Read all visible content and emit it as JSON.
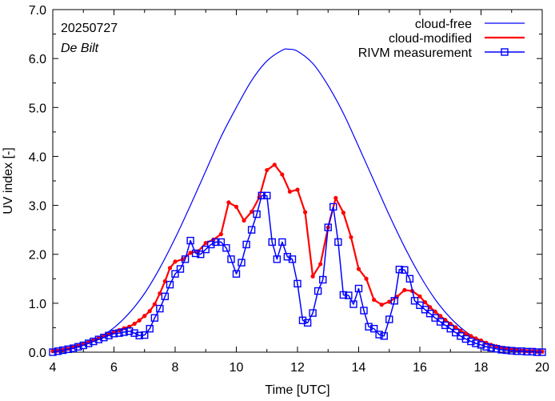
{
  "chart_data": {
    "type": "line",
    "title": "",
    "xlabel": "Time  [UTC]",
    "ylabel": "UV index  [-]",
    "xlim": [
      4,
      20
    ],
    "ylim": [
      0,
      7
    ],
    "x_ticks": [
      4,
      6,
      8,
      10,
      12,
      14,
      16,
      18,
      20
    ],
    "x_tick_labels": [
      "4",
      "6",
      "8",
      "10",
      "12",
      "14",
      "16",
      "18",
      "20"
    ],
    "y_ticks": [
      0,
      1,
      2,
      3,
      4,
      5,
      6,
      7
    ],
    "y_tick_labels": [
      "0.0",
      "1.0",
      "2.0",
      "3.0",
      "4.0",
      "5.0",
      "6.0",
      "7.0"
    ],
    "grid": false,
    "legend_position": "top-right",
    "annotations": [
      "20250727",
      "De Bilt"
    ],
    "colors": {
      "cloud_free": "#0000ff",
      "cloud_modified": "#ff0000",
      "measurement": "#0000ff"
    },
    "series": [
      {
        "name": "cloud-free",
        "style": "line",
        "peak_time": 11.72,
        "peak_value": 6.19,
        "x": [
          4.0,
          4.5,
          5.0,
          5.5,
          6.0,
          6.5,
          7.0,
          7.5,
          8.0,
          8.5,
          9.0,
          9.5,
          10.0,
          10.5,
          11.0,
          11.5,
          11.72,
          12.0,
          12.5,
          13.0,
          13.5,
          14.0,
          14.5,
          15.0,
          15.5,
          16.0,
          16.5,
          17.0,
          17.5,
          18.0,
          18.5,
          19.0,
          19.5,
          20.0
        ],
        "values": [
          0.03,
          0.08,
          0.17,
          0.3,
          0.5,
          0.8,
          1.2,
          1.72,
          2.33,
          3.0,
          3.7,
          4.4,
          5.0,
          5.55,
          5.95,
          6.17,
          6.19,
          6.15,
          5.9,
          5.45,
          4.88,
          4.2,
          3.5,
          2.8,
          2.15,
          1.57,
          1.08,
          0.7,
          0.42,
          0.23,
          0.11,
          0.05,
          0.02,
          0.01
        ]
      },
      {
        "name": "cloud-modified",
        "style": "line-dots",
        "x": [
          4.0,
          4.17,
          4.33,
          4.5,
          4.67,
          4.83,
          5.0,
          5.17,
          5.33,
          5.5,
          5.67,
          5.83,
          6.0,
          6.17,
          6.33,
          6.5,
          6.67,
          6.83,
          7.0,
          7.17,
          7.33,
          7.5,
          7.67,
          7.83,
          8.0,
          8.25,
          8.5,
          8.75,
          9.0,
          9.25,
          9.5,
          9.75,
          10.0,
          10.25,
          10.5,
          10.75,
          11.0,
          11.25,
          11.5,
          11.75,
          12.0,
          12.25,
          12.5,
          12.75,
          13.0,
          13.25,
          13.5,
          13.75,
          14.0,
          14.25,
          14.5,
          14.75,
          15.0,
          15.25,
          15.5,
          15.75,
          16.0,
          16.17,
          16.33,
          16.5,
          16.67,
          16.83,
          17.0,
          17.17,
          17.33,
          17.5,
          17.67,
          17.83,
          18.0,
          18.17,
          18.33,
          18.5,
          18.67,
          18.83,
          19.0,
          19.17,
          19.33,
          19.5,
          19.67,
          19.83,
          20.0
        ],
        "values": [
          0.02,
          0.03,
          0.05,
          0.07,
          0.1,
          0.13,
          0.17,
          0.21,
          0.25,
          0.29,
          0.33,
          0.37,
          0.41,
          0.45,
          0.49,
          0.52,
          0.58,
          0.65,
          0.74,
          0.84,
          0.98,
          1.2,
          1.45,
          1.72,
          1.85,
          1.9,
          2.03,
          2.06,
          2.23,
          2.3,
          2.41,
          3.06,
          2.97,
          2.69,
          2.87,
          3.16,
          3.72,
          3.83,
          3.63,
          3.28,
          3.32,
          2.86,
          1.55,
          1.8,
          2.55,
          3.15,
          2.85,
          2.35,
          1.7,
          1.5,
          1.07,
          0.97,
          1.03,
          1.13,
          1.27,
          1.25,
          1.14,
          1.02,
          0.92,
          0.83,
          0.74,
          0.66,
          0.58,
          0.51,
          0.44,
          0.38,
          0.33,
          0.28,
          0.24,
          0.19,
          0.15,
          0.12,
          0.09,
          0.07,
          0.05,
          0.04,
          0.03,
          0.02,
          0.02,
          0.01,
          0.01
        ]
      },
      {
        "name": "RIVM measurement",
        "style": "line-squares",
        "x": [
          4.0,
          4.17,
          4.33,
          4.5,
          4.67,
          4.83,
          5.0,
          5.17,
          5.33,
          5.5,
          5.67,
          5.83,
          6.0,
          6.17,
          6.33,
          6.5,
          6.67,
          6.83,
          7.0,
          7.17,
          7.33,
          7.5,
          7.67,
          7.83,
          8.0,
          8.17,
          8.33,
          8.5,
          8.67,
          8.83,
          9.0,
          9.17,
          9.33,
          9.5,
          9.67,
          9.83,
          10.0,
          10.17,
          10.33,
          10.5,
          10.67,
          10.83,
          11.0,
          11.17,
          11.33,
          11.5,
          11.67,
          11.83,
          12.0,
          12.17,
          12.33,
          12.5,
          12.67,
          12.83,
          13.0,
          13.17,
          13.33,
          13.5,
          13.67,
          13.83,
          14.0,
          14.17,
          14.33,
          14.5,
          14.67,
          14.83,
          15.0,
          15.17,
          15.33,
          15.5,
          15.67,
          15.83,
          16.0,
          16.17,
          16.33,
          16.5,
          16.67,
          16.83,
          17.0,
          17.17,
          17.33,
          17.5,
          17.67,
          17.83,
          18.0,
          18.17,
          18.33,
          18.5,
          18.67,
          18.83,
          19.0,
          19.17,
          19.33,
          19.5,
          19.67,
          19.83,
          20.0
        ],
        "values": [
          0.0,
          0.02,
          0.04,
          0.06,
          0.08,
          0.11,
          0.14,
          0.18,
          0.22,
          0.26,
          0.3,
          0.34,
          0.38,
          0.39,
          0.41,
          0.43,
          0.39,
          0.34,
          0.35,
          0.48,
          0.7,
          0.89,
          1.14,
          1.38,
          1.6,
          1.7,
          1.9,
          2.28,
          2.02,
          2.0,
          2.1,
          2.2,
          2.25,
          2.25,
          2.13,
          1.9,
          1.6,
          1.83,
          2.2,
          2.5,
          2.82,
          3.2,
          3.2,
          2.25,
          1.9,
          2.25,
          1.95,
          1.9,
          1.4,
          0.65,
          0.6,
          0.8,
          1.25,
          1.48,
          2.55,
          2.97,
          2.25,
          1.17,
          1.16,
          0.98,
          1.3,
          0.85,
          0.52,
          0.48,
          0.36,
          0.33,
          0.67,
          1.05,
          1.69,
          1.68,
          1.5,
          1.05,
          0.96,
          0.87,
          0.79,
          0.7,
          0.62,
          0.55,
          0.48,
          0.4,
          0.33,
          0.27,
          0.22,
          0.18,
          0.15,
          0.11,
          0.09,
          0.07,
          0.05,
          0.04,
          0.03,
          0.02,
          0.02,
          0.01,
          0.01,
          0.0,
          0.0
        ]
      }
    ]
  }
}
